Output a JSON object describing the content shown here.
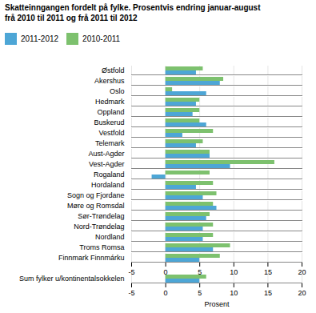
{
  "chart_data": {
    "type": "bar",
    "orientation": "horizontal",
    "title": "Skatteinngangen fordelt på fylke. Prosentvis endring januar-august\nfrå 2010 til 2011 og frå 2011 til 2012",
    "categories": [
      "Østfold",
      "Akershus",
      "Oslo",
      "Hedmark",
      "Oppland",
      "Buskerud",
      "Vestfold",
      "Telemark",
      "Aust-Agder",
      "Vest-Agder",
      "Rogaland",
      "Hordaland",
      "Sogn og Fjordane",
      "Møre og Romsdal",
      "Sør-Trøndelag",
      "Nord-Trøndelag",
      "Nordland",
      "Troms Romsa",
      "Finnmark Finnmárku",
      null,
      "Sum fylker u/kontinentalsokkelen"
    ],
    "series": [
      {
        "name": "2011-2012",
        "color": "#4da6d6",
        "values": [
          4.5,
          8.0,
          6.0,
          4.5,
          4.0,
          6.0,
          2.5,
          4.5,
          6.5,
          9.5,
          -2.0,
          4.5,
          5.5,
          7.5,
          6.0,
          5.5,
          5.5,
          7.0,
          5.0,
          null,
          5.0
        ]
      },
      {
        "name": "2010-2011",
        "color": "#7dc16e",
        "values": [
          5.5,
          8.5,
          1.0,
          5.0,
          5.0,
          5.0,
          7.0,
          5.5,
          6.5,
          16.0,
          6.5,
          7.0,
          7.5,
          7.0,
          6.5,
          7.0,
          7.0,
          9.5,
          8.0,
          null,
          6.0
        ]
      }
    ],
    "xlabel": "Prosent",
    "xlim": [
      -5,
      20
    ],
    "xticks": [
      -5,
      0,
      5,
      10,
      15,
      20
    ],
    "grid": true
  }
}
